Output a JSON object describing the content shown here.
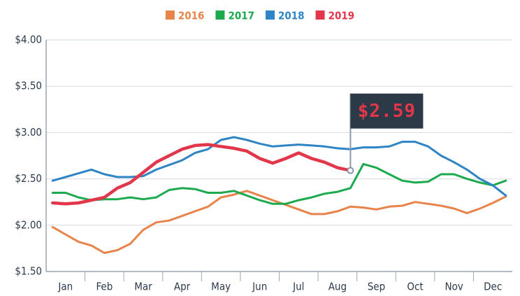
{
  "chart_data": {
    "type": "line",
    "categories": [
      null,
      "Jan",
      null,
      null,
      "Feb",
      null,
      null,
      "Mar",
      null,
      null,
      "Apr",
      null,
      null,
      "May",
      null,
      null,
      "Jun",
      null,
      null,
      "Jul",
      null,
      null,
      "Aug",
      null,
      null,
      "Sep",
      null,
      null,
      "Oct",
      null,
      null,
      "Nov",
      null,
      null,
      "Dec",
      null
    ],
    "series": [
      {
        "name": "2016",
        "color": "#e8834a",
        "values": [
          1.98,
          1.9,
          1.82,
          1.78,
          1.7,
          1.73,
          1.8,
          1.95,
          2.03,
          2.05,
          2.1,
          2.15,
          2.2,
          2.3,
          2.33,
          2.37,
          2.32,
          2.27,
          2.22,
          2.17,
          2.12,
          2.12,
          2.15,
          2.2,
          2.19,
          2.17,
          2.2,
          2.21,
          2.25,
          2.23,
          2.21,
          2.18,
          2.13,
          2.18,
          2.24,
          2.31
        ]
      },
      {
        "name": "2017",
        "color": "#1daa4f",
        "values": [
          2.35,
          2.35,
          2.3,
          2.27,
          2.28,
          2.28,
          2.3,
          2.28,
          2.3,
          2.38,
          2.4,
          2.39,
          2.35,
          2.35,
          2.37,
          2.32,
          2.27,
          2.23,
          2.23,
          2.27,
          2.3,
          2.34,
          2.36,
          2.4,
          2.66,
          2.62,
          2.55,
          2.48,
          2.46,
          2.47,
          2.55,
          2.55,
          2.5,
          2.46,
          2.43,
          2.48
        ]
      },
      {
        "name": "2018",
        "color": "#2f84c5",
        "values": [
          2.48,
          2.52,
          2.56,
          2.6,
          2.55,
          2.52,
          2.52,
          2.53,
          2.6,
          2.65,
          2.7,
          2.78,
          2.82,
          2.92,
          2.95,
          2.92,
          2.88,
          2.85,
          2.86,
          2.87,
          2.86,
          2.85,
          2.83,
          2.82,
          2.84,
          2.84,
          2.85,
          2.9,
          2.9,
          2.85,
          2.75,
          2.68,
          2.6,
          2.5,
          2.43,
          2.32
        ]
      },
      {
        "name": "2019",
        "color": "#e2364b",
        "values": [
          2.24,
          2.23,
          2.24,
          2.27,
          2.3,
          2.4,
          2.46,
          2.57,
          2.68,
          2.75,
          2.82,
          2.86,
          2.87,
          2.85,
          2.83,
          2.8,
          2.72,
          2.67,
          2.72,
          2.78,
          2.72,
          2.68,
          2.62,
          2.59,
          null,
          null,
          null,
          null,
          null,
          null,
          null,
          null,
          null,
          null,
          null,
          null
        ],
        "value_labels": {
          "23": "$2.59"
        }
      }
    ],
    "ylim": [
      1.5,
      4.0
    ],
    "yticks": [
      {
        "value": 1.5,
        "label": "$1.50"
      },
      {
        "value": 2.0,
        "label": "$2.00"
      },
      {
        "value": 2.5,
        "label": "$2.50"
      },
      {
        "value": 3.0,
        "label": "$3.00"
      },
      {
        "value": 3.5,
        "label": "$3.50"
      },
      {
        "value": 4.0,
        "label": "$4.00"
      }
    ],
    "grid": true,
    "legend": "top"
  }
}
